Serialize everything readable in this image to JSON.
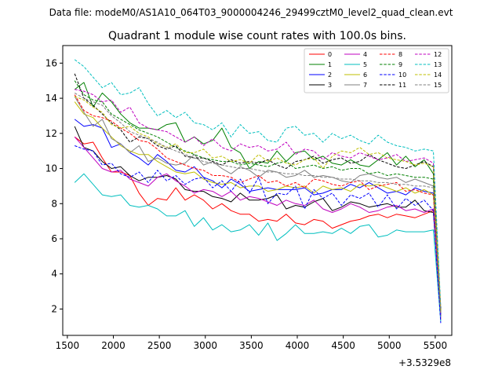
{
  "header": {
    "file_line": "Data file: modeM0/AS1A10_064T03_9000004246_29499cztM0_level2_quad_clean.evt"
  },
  "chart_data": {
    "type": "line",
    "title": "Quadrant 1 module wise count rates with 100.0s bins.",
    "xlabel": "",
    "ylabel": "",
    "x_offset_label": "+3.5329e8",
    "xlim": [
      1450,
      5680
    ],
    "ylim": [
      0.5,
      17.0
    ],
    "x_ticks": [
      1500,
      2000,
      2500,
      3000,
      3500,
      4000,
      4500,
      5000,
      5500
    ],
    "x_tick_labels": [
      "1500",
      "2000",
      "2500",
      "3000",
      "3500",
      "4000",
      "4500",
      "5000",
      "5500"
    ],
    "y_ticks": [
      2,
      4,
      6,
      8,
      10,
      12,
      14,
      16
    ],
    "y_tick_labels": [
      "2",
      "4",
      "6",
      "8",
      "10",
      "12",
      "14",
      "16"
    ],
    "legend_location": "top-right",
    "x": [
      1580,
      1680,
      1780,
      1880,
      1980,
      2080,
      2180,
      2280,
      2380,
      2480,
      2580,
      2680,
      2780,
      2880,
      2980,
      3080,
      3180,
      3280,
      3380,
      3480,
      3580,
      3680,
      3780,
      3880,
      3980,
      4080,
      4180,
      4280,
      4380,
      4480,
      4580,
      4680,
      4780,
      4880,
      4980,
      5080,
      5180,
      5280,
      5380,
      5480,
      5560
    ],
    "series": [
      {
        "name": "0",
        "color": "#ff0000",
        "dash": "solid",
        "values": [
          11.8,
          11.4,
          11.5,
          10.6,
          9.8,
          9.8,
          9.6,
          8.6,
          7.9,
          8.3,
          8.2,
          8.9,
          8.2,
          8.5,
          8.2,
          7.7,
          8.0,
          7.6,
          7.4,
          7.4,
          7.0,
          7.1,
          7.0,
          7.4,
          6.9,
          6.8,
          7.1,
          7.0,
          6.6,
          6.8,
          7.0,
          7.1,
          7.3,
          7.4,
          7.2,
          7.4,
          7.3,
          7.2,
          7.4,
          7.6,
          1.4
        ]
      },
      {
        "name": "1",
        "color": "#008000",
        "dash": "solid",
        "values": [
          14.5,
          14.9,
          13.5,
          14.3,
          13.8,
          13.1,
          12.6,
          12.3,
          12.3,
          12.2,
          12.5,
          12.6,
          11.5,
          11.8,
          11.4,
          11.6,
          12.3,
          11.2,
          10.9,
          10.0,
          10.4,
          10.3,
          11.0,
          10.4,
          10.9,
          11.0,
          10.5,
          10.7,
          10.3,
          10.2,
          10.5,
          10.2,
          10.1,
          10.5,
          10.9,
          10.2,
          10.7,
          10.1,
          10.5,
          9.7,
          1.6
        ]
      },
      {
        "name": "2",
        "color": "#0000ff",
        "dash": "solid",
        "values": [
          12.8,
          12.4,
          12.5,
          12.3,
          11.2,
          11.4,
          10.9,
          10.6,
          10.2,
          10.8,
          10.4,
          9.9,
          9.8,
          10.1,
          9.5,
          9.3,
          8.9,
          9.4,
          9.1,
          8.7,
          8.8,
          8.9,
          8.8,
          8.8,
          8.8,
          8.9,
          8.5,
          8.6,
          8.8,
          8.8,
          9.1,
          8.9,
          9.2,
          8.9,
          8.6,
          8.7,
          8.5,
          8.9,
          8.7,
          8.6,
          1.7
        ]
      },
      {
        "name": "3",
        "color": "#000000",
        "dash": "solid",
        "values": [
          12.4,
          11.2,
          11.0,
          10.4,
          10.0,
          10.1,
          9.6,
          9.3,
          9.5,
          9.5,
          9.6,
          9.4,
          8.8,
          8.7,
          8.7,
          8.4,
          8.3,
          8.1,
          8.6,
          8.2,
          8.2,
          8.3,
          8.5,
          7.7,
          7.9,
          7.8,
          8.1,
          8.3,
          7.6,
          7.8,
          8.1,
          8.0,
          7.8,
          7.9,
          8.0,
          7.8,
          7.8,
          8.2,
          7.6,
          7.5,
          1.9
        ]
      },
      {
        "name": "4",
        "color": "#bf00bf",
        "dash": "solid",
        "values": [
          11.8,
          11.2,
          10.6,
          10.0,
          9.8,
          9.9,
          9.4,
          9.2,
          9.0,
          9.5,
          9.7,
          9.3,
          9.0,
          8.6,
          8.8,
          8.7,
          8.4,
          8.7,
          8.2,
          8.4,
          8.3,
          8.1,
          7.9,
          8.2,
          8.0,
          7.9,
          8.2,
          7.7,
          7.5,
          7.7,
          8.0,
          7.8,
          7.5,
          7.6,
          7.8,
          7.9,
          7.6,
          7.7,
          7.5,
          7.7,
          1.5
        ]
      },
      {
        "name": "5",
        "color": "#00bfbf",
        "dash": "solid",
        "values": [
          9.2,
          9.7,
          9.1,
          8.5,
          8.4,
          8.5,
          7.9,
          7.8,
          7.9,
          7.7,
          7.3,
          7.3,
          7.6,
          6.7,
          7.2,
          6.5,
          6.8,
          6.4,
          6.5,
          6.8,
          6.2,
          6.9,
          5.9,
          6.3,
          6.8,
          6.3,
          6.3,
          6.4,
          6.3,
          6.6,
          6.3,
          6.7,
          6.8,
          6.1,
          6.2,
          6.5,
          6.4,
          6.4,
          6.4,
          6.5,
          1.3
        ]
      },
      {
        "name": "6",
        "color": "#bfbf00",
        "dash": "solid",
        "values": [
          13.8,
          13.1,
          12.9,
          12.3,
          11.8,
          11.3,
          11.0,
          10.8,
          10.8,
          10.4,
          10.1,
          9.8,
          9.7,
          9.8,
          9.4,
          9.2,
          9.1,
          9.2,
          8.9,
          9.0,
          9.0,
          8.7,
          8.8,
          9.0,
          8.9,
          9.0,
          8.6,
          9.0,
          8.8,
          8.9,
          8.7,
          9.1,
          9.0,
          9.1,
          8.9,
          8.7,
          8.9,
          8.6,
          8.8,
          8.5,
          1.8
        ]
      },
      {
        "name": "7",
        "color": "#808080",
        "dash": "solid",
        "values": [
          14.1,
          13.2,
          12.4,
          12.8,
          11.7,
          11.4,
          10.9,
          11.3,
          10.4,
          10.6,
          10.3,
          10.2,
          10.3,
          10.8,
          10.2,
          10.4,
          10.0,
          9.7,
          10.1,
          9.9,
          9.5,
          9.9,
          9.8,
          9.5,
          9.6,
          9.9,
          9.5,
          9.6,
          9.5,
          9.3,
          9.2,
          9.6,
          9.7,
          9.5,
          9.4,
          9.5,
          9.2,
          9.4,
          9.2,
          9.0,
          1.8
        ]
      },
      {
        "name": "8",
        "color": "#ff0000",
        "dash": "dashed",
        "values": [
          14.2,
          13.3,
          13.0,
          12.9,
          12.7,
          12.3,
          12.0,
          11.6,
          11.5,
          11.1,
          10.6,
          10.4,
          10.2,
          10.0,
          9.9,
          9.6,
          9.6,
          9.5,
          9.2,
          9.4,
          9.6,
          9.2,
          9.3,
          9.0,
          9.2,
          8.9,
          9.4,
          9.3,
          9.1,
          9.0,
          9.2,
          9.3,
          8.8,
          9.0,
          9.1,
          9.2,
          8.7,
          8.8,
          8.6,
          8.5,
          1.7
        ]
      },
      {
        "name": "9",
        "color": "#008000",
        "dash": "dashed",
        "values": [
          15.0,
          14.2,
          13.9,
          13.8,
          13.1,
          12.8,
          12.5,
          12.2,
          12.0,
          11.8,
          11.5,
          11.2,
          11.0,
          10.8,
          10.6,
          10.5,
          10.4,
          10.4,
          10.2,
          10.3,
          10.2,
          10.1,
          10.3,
          10.4,
          10.0,
          10.1,
          10.2,
          10.0,
          10.1,
          9.9,
          10.0,
          10.0,
          9.7,
          9.8,
          9.6,
          9.7,
          9.6,
          9.5,
          9.5,
          9.4,
          1.9
        ]
      },
      {
        "name": "10",
        "color": "#0000ff",
        "dash": "dashed",
        "values": [
          11.3,
          11.1,
          11.0,
          10.2,
          10.3,
          9.7,
          9.5,
          9.8,
          9.2,
          9.9,
          9.3,
          9.6,
          9.1,
          9.4,
          9.5,
          8.9,
          9.3,
          8.7,
          9.4,
          8.6,
          9.5,
          8.0,
          8.6,
          8.5,
          9.0,
          7.7,
          8.8,
          8.3,
          8.6,
          7.9,
          8.5,
          8.3,
          8.6,
          7.8,
          8.5,
          7.7,
          8.3,
          7.9,
          8.2,
          7.6,
          1.2
        ]
      },
      {
        "name": "11",
        "color": "#000000",
        "dash": "dashed",
        "values": [
          15.4,
          14.0,
          13.6,
          13.1,
          12.6,
          12.2,
          11.5,
          11.8,
          11.7,
          11.3,
          11.1,
          11.3,
          10.7,
          10.6,
          10.6,
          10.4,
          10.2,
          10.5,
          10.3,
          10.4,
          10.3,
          10.5,
          10.2,
          10.0,
          10.4,
          10.5,
          10.7,
          10.3,
          10.5,
          10.6,
          10.3,
          10.4,
          10.8,
          10.5,
          10.3,
          10.1,
          10.0,
          10.2,
          10.4,
          10.1,
          2.0
        ]
      },
      {
        "name": "12",
        "color": "#bf00bf",
        "dash": "dashed",
        "values": [
          14.5,
          14.4,
          14.2,
          13.8,
          13.9,
          13.2,
          13.5,
          12.6,
          12.3,
          12.2,
          12.1,
          11.8,
          11.5,
          11.8,
          11.3,
          11.7,
          11.2,
          11.0,
          11.4,
          11.2,
          11.3,
          11.0,
          11.1,
          11.5,
          10.8,
          11.1,
          11.0,
          10.5,
          10.9,
          10.7,
          10.6,
          10.9,
          10.7,
          10.5,
          10.6,
          10.8,
          10.4,
          10.5,
          10.6,
          10.3,
          2.0
        ]
      },
      {
        "name": "13",
        "color": "#00bfbf",
        "dash": "dashed",
        "values": [
          16.2,
          15.8,
          15.2,
          14.6,
          14.9,
          14.2,
          14.3,
          14.6,
          13.7,
          13.0,
          13.3,
          12.9,
          13.2,
          12.6,
          12.5,
          12.2,
          12.6,
          11.8,
          12.5,
          12.0,
          12.1,
          11.6,
          11.5,
          12.3,
          12.4,
          11.9,
          12.0,
          11.5,
          12.0,
          11.7,
          11.9,
          11.6,
          11.4,
          11.9,
          11.5,
          11.3,
          11.2,
          11.0,
          11.1,
          11.0,
          2.1
        ]
      },
      {
        "name": "14",
        "color": "#bfbf00",
        "dash": "dashed",
        "values": [
          14.1,
          13.9,
          13.5,
          13.2,
          12.5,
          12.3,
          12.4,
          12.0,
          11.8,
          11.4,
          11.2,
          11.4,
          10.9,
          10.9,
          11.1,
          10.6,
          10.7,
          10.4,
          10.5,
          10.3,
          10.8,
          10.4,
          10.6,
          10.3,
          10.2,
          10.5,
          10.6,
          10.0,
          10.7,
          11.0,
          10.9,
          11.2,
          10.8,
          10.9,
          10.6,
          10.5,
          10.4,
          10.2,
          10.3,
          10.1,
          1.9
        ]
      },
      {
        "name": "15",
        "color": "#808080",
        "dash": "dashed",
        "values": [
          14.3,
          14.0,
          13.8,
          13.6,
          13.0,
          12.6,
          12.1,
          11.9,
          11.7,
          11.5,
          11.2,
          11.0,
          10.8,
          10.6,
          10.4,
          10.3,
          10.2,
          10.1,
          10.0,
          10.0,
          9.9,
          9.8,
          9.8,
          9.7,
          9.7,
          9.6,
          9.6,
          9.5,
          9.5,
          9.4,
          9.4,
          9.3,
          9.3,
          9.2,
          9.2,
          9.1,
          9.1,
          9.0,
          9.0,
          8.9,
          1.8
        ]
      }
    ]
  }
}
